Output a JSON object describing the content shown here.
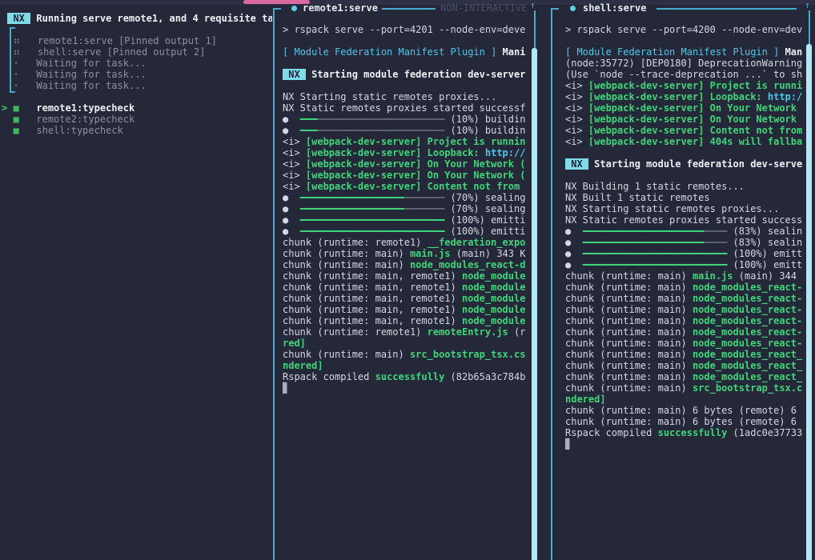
{
  "window": {
    "top_accent_color": "#d96a9f",
    "background_color": "#252839",
    "border_color": "#4aa8c8"
  },
  "colors": {
    "accent_cyan": "#4fc6e8",
    "badge_cyan": "#7fdce9",
    "green": "#3ed57a",
    "dim": "#8a90a5",
    "scrollbar_thumb": "#b5e8f6",
    "pink": "#d96a9f"
  },
  "left_pane": {
    "lines": [
      {
        "name": "task-runner-header",
        "segs": [
          [
            " ",
            "fg"
          ],
          [
            " NX ",
            "badge"
          ],
          [
            " ",
            "fg"
          ],
          [
            "Running serve remote1, and 4 requisite ta",
            "boldw"
          ]
        ]
      },
      {
        "segs": []
      },
      {
        "name": "task-row",
        "inter": true,
        "segs": [
          [
            "  ",
            "fg"
          ],
          [
            "⠶",
            "dim"
          ],
          [
            "   ",
            "fg"
          ],
          [
            "remote1:serve [Pinned output 1]",
            "dim"
          ]
        ]
      },
      {
        "name": "task-row",
        "inter": true,
        "segs": [
          [
            "  ",
            "fg"
          ],
          [
            "⠶",
            "dim"
          ],
          [
            "   ",
            "fg"
          ],
          [
            "shell:serve [Pinned output 2]",
            "dim"
          ]
        ]
      },
      {
        "name": "task-row",
        "inter": true,
        "segs": [
          [
            "  ",
            "fg"
          ],
          [
            "·",
            "dim"
          ],
          [
            "   ",
            "fg"
          ],
          [
            "Waiting for task...",
            "dim"
          ]
        ]
      },
      {
        "name": "task-row",
        "inter": true,
        "segs": [
          [
            "  ",
            "fg"
          ],
          [
            "·",
            "dim"
          ],
          [
            "   ",
            "fg"
          ],
          [
            "Waiting for task...",
            "dim"
          ]
        ]
      },
      {
        "name": "task-row",
        "inter": true,
        "segs": [
          [
            "  ",
            "fg"
          ],
          [
            "·",
            "dim"
          ],
          [
            "   ",
            "fg"
          ],
          [
            "Waiting for task...",
            "dim"
          ]
        ]
      },
      {
        "segs": []
      },
      {
        "name": "task-row-selected",
        "inter": true,
        "segs": [
          [
            "> ",
            "grn"
          ],
          [
            "■",
            "sq"
          ],
          [
            "   ",
            "fg"
          ],
          [
            "remote1:typecheck",
            "boldw"
          ]
        ]
      },
      {
        "name": "task-row",
        "inter": true,
        "segs": [
          [
            "  ",
            "fg"
          ],
          [
            "■",
            "sq"
          ],
          [
            "   ",
            "fg"
          ],
          [
            "remote2:typecheck",
            "dim"
          ]
        ]
      },
      {
        "name": "task-row",
        "inter": true,
        "segs": [
          [
            "  ",
            "fg"
          ],
          [
            "■",
            "sq"
          ],
          [
            "   ",
            "fg"
          ],
          [
            "shell:typecheck",
            "dim"
          ]
        ]
      }
    ]
  },
  "middle_pane": {
    "title": "remote1:serve",
    "mode_label": "NON-INTERACTIVE",
    "scroll_arrow": "↑",
    "lines": [
      {
        "segs": [
          [
            "> rspack serve --port=4201 --node-env=deve",
            "fg"
          ]
        ]
      },
      {
        "segs": []
      },
      {
        "segs": [
          [
            "[ Module Federation Manifest Plugin ]",
            "cyn"
          ],
          [
            " ",
            "fg"
          ],
          [
            "Mani",
            "boldw"
          ]
        ]
      },
      {
        "segs": []
      },
      {
        "segs": [
          [
            " NX ",
            "badge"
          ],
          [
            " ",
            "fg"
          ],
          [
            "Starting module federation dev-server",
            "boldw"
          ]
        ]
      },
      {
        "segs": []
      },
      {
        "segs": [
          [
            "NX Starting static remotes proxies...",
            "fg"
          ]
        ]
      },
      {
        "segs": [
          [
            "NX Static remotes proxies started successf",
            "fg"
          ]
        ]
      },
      {
        "segs": [
          [
            "●  ",
            "fg"
          ],
          [
            "━━━",
            "barG"
          ],
          [
            "──────────────────────",
            "barX"
          ],
          [
            " (10%) buildin",
            "fg"
          ]
        ]
      },
      {
        "segs": [
          [
            "●  ",
            "fg"
          ],
          [
            "━━━",
            "barG"
          ],
          [
            "──────────────────────",
            "barX"
          ],
          [
            " (10%) buildin",
            "fg"
          ]
        ]
      },
      {
        "segs": [
          [
            "<i> ",
            "fg"
          ],
          [
            "[webpack-dev-server] Project is runnin",
            "grn"
          ]
        ]
      },
      {
        "segs": [
          [
            "<i> ",
            "fg"
          ],
          [
            "[webpack-dev-server] Loopback: ",
            "grn"
          ],
          [
            "http://",
            "lnk"
          ]
        ]
      },
      {
        "segs": [
          [
            "<i> ",
            "fg"
          ],
          [
            "[webpack-dev-server] On Your Network (",
            "grn"
          ]
        ]
      },
      {
        "segs": [
          [
            "<i> ",
            "fg"
          ],
          [
            "[webpack-dev-server] On Your Network (",
            "grn"
          ]
        ]
      },
      {
        "segs": [
          [
            "<i> ",
            "fg"
          ],
          [
            "[webpack-dev-server] Content not from",
            "grn"
          ]
        ]
      },
      {
        "segs": [
          [
            "●  ",
            "fg"
          ],
          [
            "━━━━━━━━━━━━━━━━━━",
            "barG"
          ],
          [
            "───────",
            "barX"
          ],
          [
            " (70%) sealing",
            "fg"
          ]
        ]
      },
      {
        "segs": [
          [
            "●  ",
            "fg"
          ],
          [
            "━━━━━━━━━━━━━━━━━━",
            "barG"
          ],
          [
            "───────",
            "barX"
          ],
          [
            " (70%) sealing",
            "fg"
          ]
        ]
      },
      {
        "segs": [
          [
            "●  ",
            "fg"
          ],
          [
            "━━━━━━━━━━━━━━━━━━━━━━━━━",
            "barG"
          ],
          [
            " (100%) emitti",
            "fg"
          ]
        ]
      },
      {
        "segs": [
          [
            "●  ",
            "fg"
          ],
          [
            "━━━━━━━━━━━━━━━━━━━━━━━━━",
            "barG"
          ],
          [
            " (100%) emitti",
            "fg"
          ]
        ]
      },
      {
        "segs": [
          [
            "chunk (runtime: remote1) ",
            "fg"
          ],
          [
            "__federation_expo",
            "grn"
          ]
        ]
      },
      {
        "segs": [
          [
            "chunk (runtime: main) ",
            "fg"
          ],
          [
            "main.js",
            "grn"
          ],
          [
            " (main) 343 K",
            "fg"
          ]
        ]
      },
      {
        "segs": [
          [
            "chunk (runtime: main) ",
            "fg"
          ],
          [
            "node_modules_react-d",
            "grn"
          ]
        ]
      },
      {
        "segs": [
          [
            "chunk (runtime: main, remote1) ",
            "fg"
          ],
          [
            "node_module",
            "grn"
          ]
        ]
      },
      {
        "segs": [
          [
            "chunk (runtime: main, remote1) ",
            "fg"
          ],
          [
            "node_module",
            "grn"
          ]
        ]
      },
      {
        "segs": [
          [
            "chunk (runtime: main, remote1) ",
            "fg"
          ],
          [
            "node_module",
            "grn"
          ]
        ]
      },
      {
        "segs": [
          [
            "chunk (runtime: main, remote1) ",
            "fg"
          ],
          [
            "node_module",
            "grn"
          ]
        ]
      },
      {
        "segs": [
          [
            "chunk (runtime: main, remote1) ",
            "fg"
          ],
          [
            "node_module",
            "grn"
          ]
        ]
      },
      {
        "segs": [
          [
            "chunk (runtime: remote1) ",
            "fg"
          ],
          [
            "remoteEntry.js",
            "grn"
          ],
          [
            " (r",
            "fg"
          ]
        ]
      },
      {
        "segs": [
          [
            "red]",
            "grn"
          ]
        ]
      },
      {
        "segs": [
          [
            "chunk (runtime: main) ",
            "fg"
          ],
          [
            "src_bootstrap_tsx.cs",
            "grn"
          ]
        ]
      },
      {
        "segs": [
          [
            "ndered]",
            "grn"
          ]
        ]
      },
      {
        "segs": [
          [
            "Rspack compiled ",
            "fg"
          ],
          [
            "successfully",
            "grn"
          ],
          [
            " (82b65a3c784b",
            "fg"
          ]
        ]
      },
      {
        "name": "cursor-block",
        "segs": [
          [
            "▊",
            "cursor"
          ]
        ]
      }
    ]
  },
  "right_pane": {
    "title": "shell:serve",
    "scroll_arrow": "↑",
    "lines": [
      {
        "segs": [
          [
            "> rspack serve --port=4200 --node-env=dev",
            "fg"
          ]
        ]
      },
      {
        "segs": []
      },
      {
        "segs": [
          [
            "[ Module Federation Manifest Plugin ]",
            "cyn"
          ],
          [
            " ",
            "fg"
          ],
          [
            "Man",
            "boldw"
          ]
        ]
      },
      {
        "segs": [
          [
            "(node:35772) [DEP0180] DeprecationWarning",
            "fg"
          ]
        ]
      },
      {
        "segs": [
          [
            "(Use `node --trace-deprecation ...` to sh",
            "fg"
          ]
        ]
      },
      {
        "segs": [
          [
            "<i> ",
            "fg"
          ],
          [
            "[webpack-dev-server] Project is runni",
            "grn"
          ]
        ]
      },
      {
        "segs": [
          [
            "<i> ",
            "fg"
          ],
          [
            "[webpack-dev-server] Loopback: ",
            "grn"
          ],
          [
            "http:/",
            "lnk"
          ]
        ]
      },
      {
        "segs": [
          [
            "<i> ",
            "fg"
          ],
          [
            "[webpack-dev-server] On Your Network",
            "grn"
          ]
        ]
      },
      {
        "segs": [
          [
            "<i> ",
            "fg"
          ],
          [
            "[webpack-dev-server] On Your Network",
            "grn"
          ]
        ]
      },
      {
        "segs": [
          [
            "<i> ",
            "fg"
          ],
          [
            "[webpack-dev-server] Content not from",
            "grn"
          ]
        ]
      },
      {
        "segs": [
          [
            "<i> ",
            "fg"
          ],
          [
            "[webpack-dev-server] 404s will fallba",
            "grn"
          ]
        ]
      },
      {
        "segs": []
      },
      {
        "segs": [
          [
            " NX ",
            "badge"
          ],
          [
            " ",
            "fg"
          ],
          [
            "Starting module federation dev-serve",
            "boldw"
          ]
        ]
      },
      {
        "segs": []
      },
      {
        "segs": [
          [
            "NX Building 1 static remotes...",
            "fg"
          ]
        ]
      },
      {
        "segs": [
          [
            "NX Built 1 static remotes",
            "fg"
          ]
        ]
      },
      {
        "segs": [
          [
            "NX Starting static remotes proxies...",
            "fg"
          ]
        ]
      },
      {
        "segs": [
          [
            "NX Static remotes proxies started success",
            "fg"
          ]
        ]
      },
      {
        "segs": [
          [
            "●  ",
            "fg"
          ],
          [
            "━━━━━━━━━━━━━━━━━━━━━",
            "barG"
          ],
          [
            "────",
            "barX"
          ],
          [
            " (83%) sealin",
            "fg"
          ]
        ]
      },
      {
        "segs": [
          [
            "●  ",
            "fg"
          ],
          [
            "━━━━━━━━━━━━━━━━━━━━━",
            "barG"
          ],
          [
            "────",
            "barX"
          ],
          [
            " (83%) sealin",
            "fg"
          ]
        ]
      },
      {
        "segs": [
          [
            "●  ",
            "fg"
          ],
          [
            "━━━━━━━━━━━━━━━━━━━━━━━━━",
            "barG"
          ],
          [
            " (100%) emitt",
            "fg"
          ]
        ]
      },
      {
        "segs": [
          [
            "●  ",
            "fg"
          ],
          [
            "━━━━━━━━━━━━━━━━━━━━━━━━━",
            "barG"
          ],
          [
            " (100%) emitt",
            "fg"
          ]
        ]
      },
      {
        "segs": [
          [
            "chunk (runtime: main) ",
            "fg"
          ],
          [
            "main.js",
            "grn"
          ],
          [
            " (main) 344",
            "fg"
          ]
        ]
      },
      {
        "segs": [
          [
            "chunk (runtime: main) ",
            "fg"
          ],
          [
            "node_modules_react-",
            "grn"
          ]
        ]
      },
      {
        "segs": [
          [
            "chunk (runtime: main) ",
            "fg"
          ],
          [
            "node_modules_react-",
            "grn"
          ]
        ]
      },
      {
        "segs": [
          [
            "chunk (runtime: main) ",
            "fg"
          ],
          [
            "node_modules_react-",
            "grn"
          ]
        ]
      },
      {
        "segs": [
          [
            "chunk (runtime: main) ",
            "fg"
          ],
          [
            "node_modules_react-",
            "grn"
          ]
        ]
      },
      {
        "segs": [
          [
            "chunk (runtime: main) ",
            "fg"
          ],
          [
            "node_modules_react-",
            "grn"
          ]
        ]
      },
      {
        "segs": [
          [
            "chunk (runtime: main) ",
            "fg"
          ],
          [
            "node_modules_react-",
            "grn"
          ]
        ]
      },
      {
        "segs": [
          [
            "chunk (runtime: main) ",
            "fg"
          ],
          [
            "node_modules_react_",
            "grn"
          ]
        ]
      },
      {
        "segs": [
          [
            "chunk (runtime: main) ",
            "fg"
          ],
          [
            "node_modules_react_",
            "grn"
          ]
        ]
      },
      {
        "segs": [
          [
            "chunk (runtime: main) ",
            "fg"
          ],
          [
            "node_modules_react_",
            "grn"
          ]
        ]
      },
      {
        "segs": [
          [
            "chunk (runtime: main) ",
            "fg"
          ],
          [
            "src_bootstrap_tsx.c",
            "grn"
          ]
        ]
      },
      {
        "segs": [
          [
            "ndered]",
            "grn"
          ]
        ]
      },
      {
        "segs": [
          [
            "chunk (runtime: main) 6 bytes (remote) 6",
            "fg"
          ]
        ]
      },
      {
        "segs": [
          [
            "chunk (runtime: main) 6 bytes (remote) 6",
            "fg"
          ]
        ]
      },
      {
        "segs": [
          [
            "Rspack compiled ",
            "fg"
          ],
          [
            "successfully",
            "grn"
          ],
          [
            " (1adc0e37733",
            "fg"
          ]
        ]
      },
      {
        "name": "cursor-block",
        "segs": [
          [
            "▊",
            "cursor"
          ]
        ]
      }
    ]
  }
}
